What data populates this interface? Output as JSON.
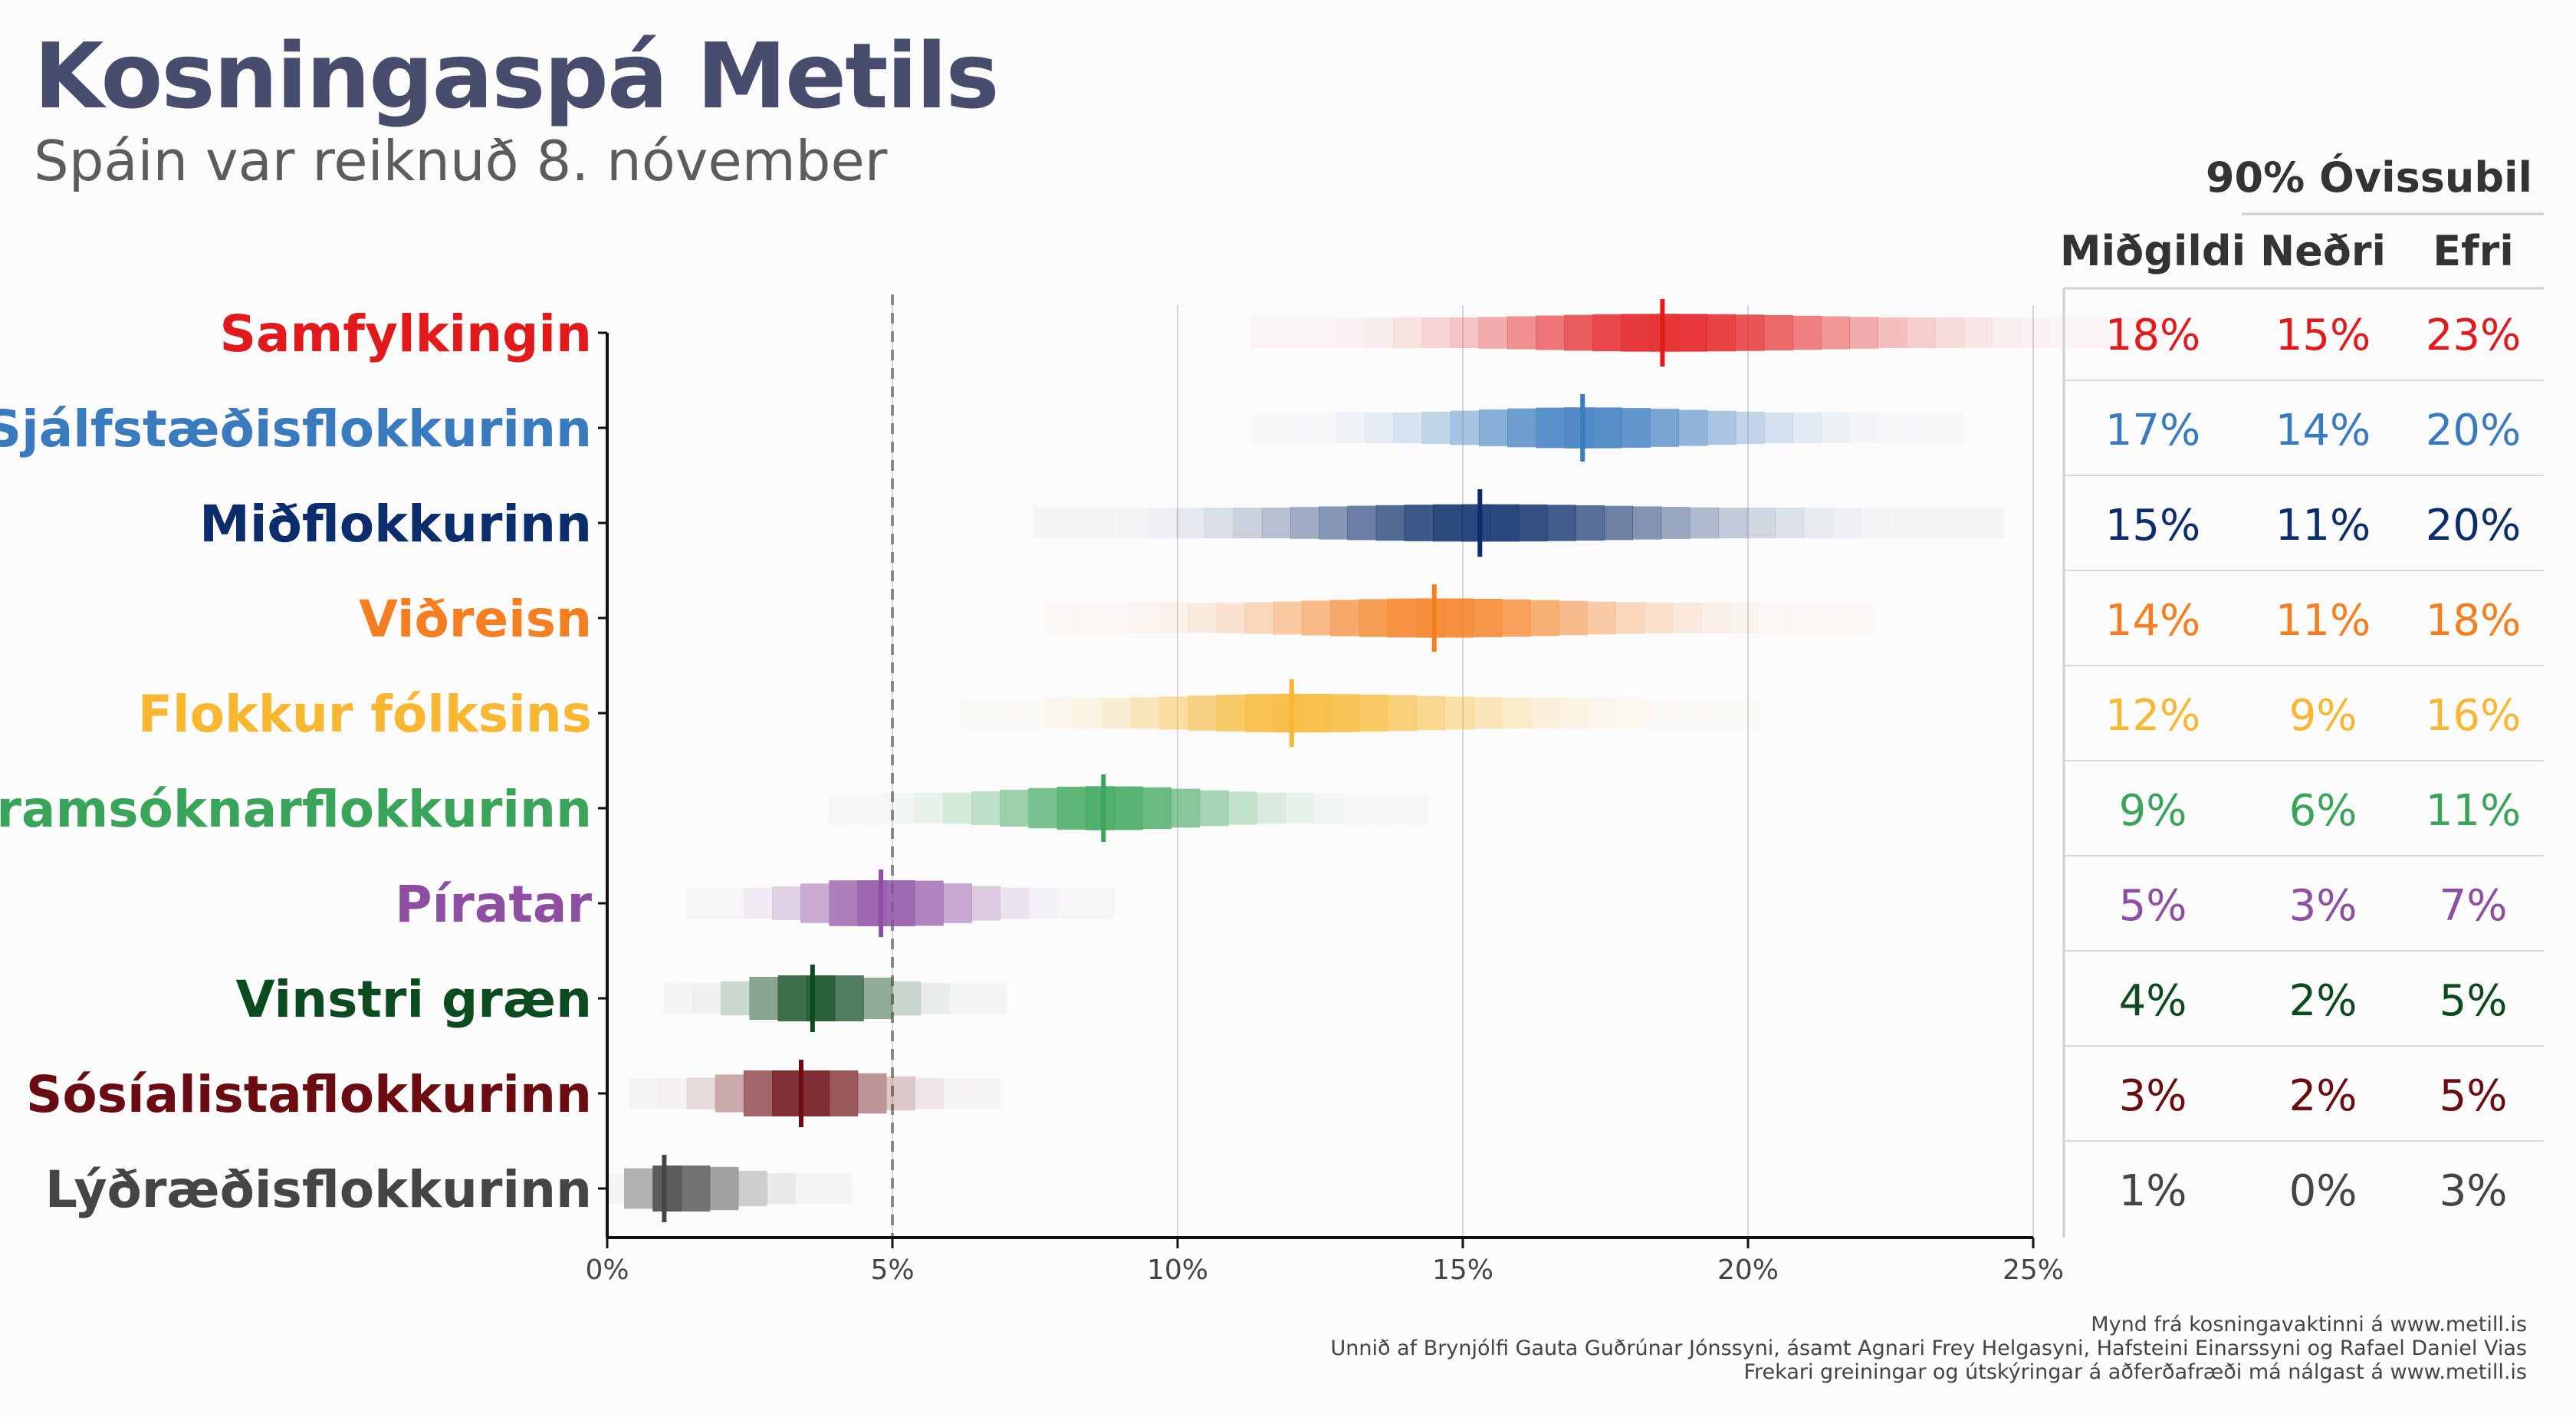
{
  "title": "Kosningaspá Metils",
  "subtitle": "Spáin var reiknuð 8. nóvember",
  "table_headers": {
    "group": "90% Óvissubil",
    "median": "Miðgildi",
    "lower": "Neðri",
    "upper": "Efri"
  },
  "footer": [
    "Mynd frá kosningavaktinni á www.metill.is",
    "Unnið af Brynjólfi Gauta Guðrúnar Jónssyni, ásamt Agnari Frey Helgasyni, Hafsteini Einarssyni og Rafael Daniel Vias",
    "Frekari greiningar og útskýringar á aðferðafræði má nálgast á www.metill.is"
  ],
  "chart_data": {
    "type": "interval",
    "xlim": [
      0,
      25
    ],
    "x_ticks": [
      0,
      5,
      10,
      15,
      20,
      25
    ],
    "x_tick_labels": [
      "0%",
      "5%",
      "10%",
      "15%",
      "20%",
      "25%"
    ],
    "reference_line": 5,
    "grid": "vertical",
    "parties": [
      {
        "name": "Samfylkingin",
        "color": "#e31a1c",
        "median": 18.5,
        "lower": 14.9,
        "upper": 22.8,
        "median_label": "18%",
        "lower_label": "15%",
        "upper_label": "23%"
      },
      {
        "name": "Sjálfstæðisflokkurinn",
        "color": "#3a7bbf",
        "median": 17.1,
        "lower": 14.2,
        "upper": 20.4,
        "median_label": "17%",
        "lower_label": "14%",
        "upper_label": "20%"
      },
      {
        "name": "Miðflokkurinn",
        "color": "#0b2d6b",
        "median": 15.3,
        "lower": 11.4,
        "upper": 19.8,
        "median_label": "15%",
        "lower_label": "11%",
        "upper_label": "20%"
      },
      {
        "name": "Viðreisn",
        "color": "#f57f20",
        "median": 14.5,
        "lower": 11.1,
        "upper": 18.3,
        "median_label": "14%",
        "lower_label": "11%",
        "upper_label": "18%"
      },
      {
        "name": "Flokkur fólksins",
        "color": "#f7b731",
        "median": 12.0,
        "lower": 9.1,
        "upper": 16.0,
        "median_label": "12%",
        "lower_label": "9%",
        "upper_label": "16%"
      },
      {
        "name": "Framsóknarflokkurinn",
        "color": "#3aa55a",
        "median": 8.7,
        "lower": 6.3,
        "upper": 11.4,
        "median_label": "9%",
        "lower_label": "6%",
        "upper_label": "11%"
      },
      {
        "name": "Píratar",
        "color": "#8e4fa3",
        "median": 4.8,
        "lower": 3.1,
        "upper": 6.8,
        "median_label": "5%",
        "lower_label": "3%",
        "upper_label": "7%"
      },
      {
        "name": "Vinstri græn",
        "color": "#0c4b1f",
        "median": 3.6,
        "lower": 2.3,
        "upper": 5.2,
        "median_label": "4%",
        "lower_label": "2%",
        "upper_label": "5%"
      },
      {
        "name": "Sósíalistaflokkurinn",
        "color": "#6b0c12",
        "median": 3.4,
        "lower": 1.9,
        "upper": 5.1,
        "median_label": "3%",
        "lower_label": "2%",
        "upper_label": "5%"
      },
      {
        "name": "Lýðræðisflokkurinn",
        "color": "#454545",
        "median": 1.0,
        "lower": 0.4,
        "upper": 2.6,
        "median_label": "1%",
        "lower_label": "0%",
        "upper_label": "3%"
      }
    ]
  }
}
